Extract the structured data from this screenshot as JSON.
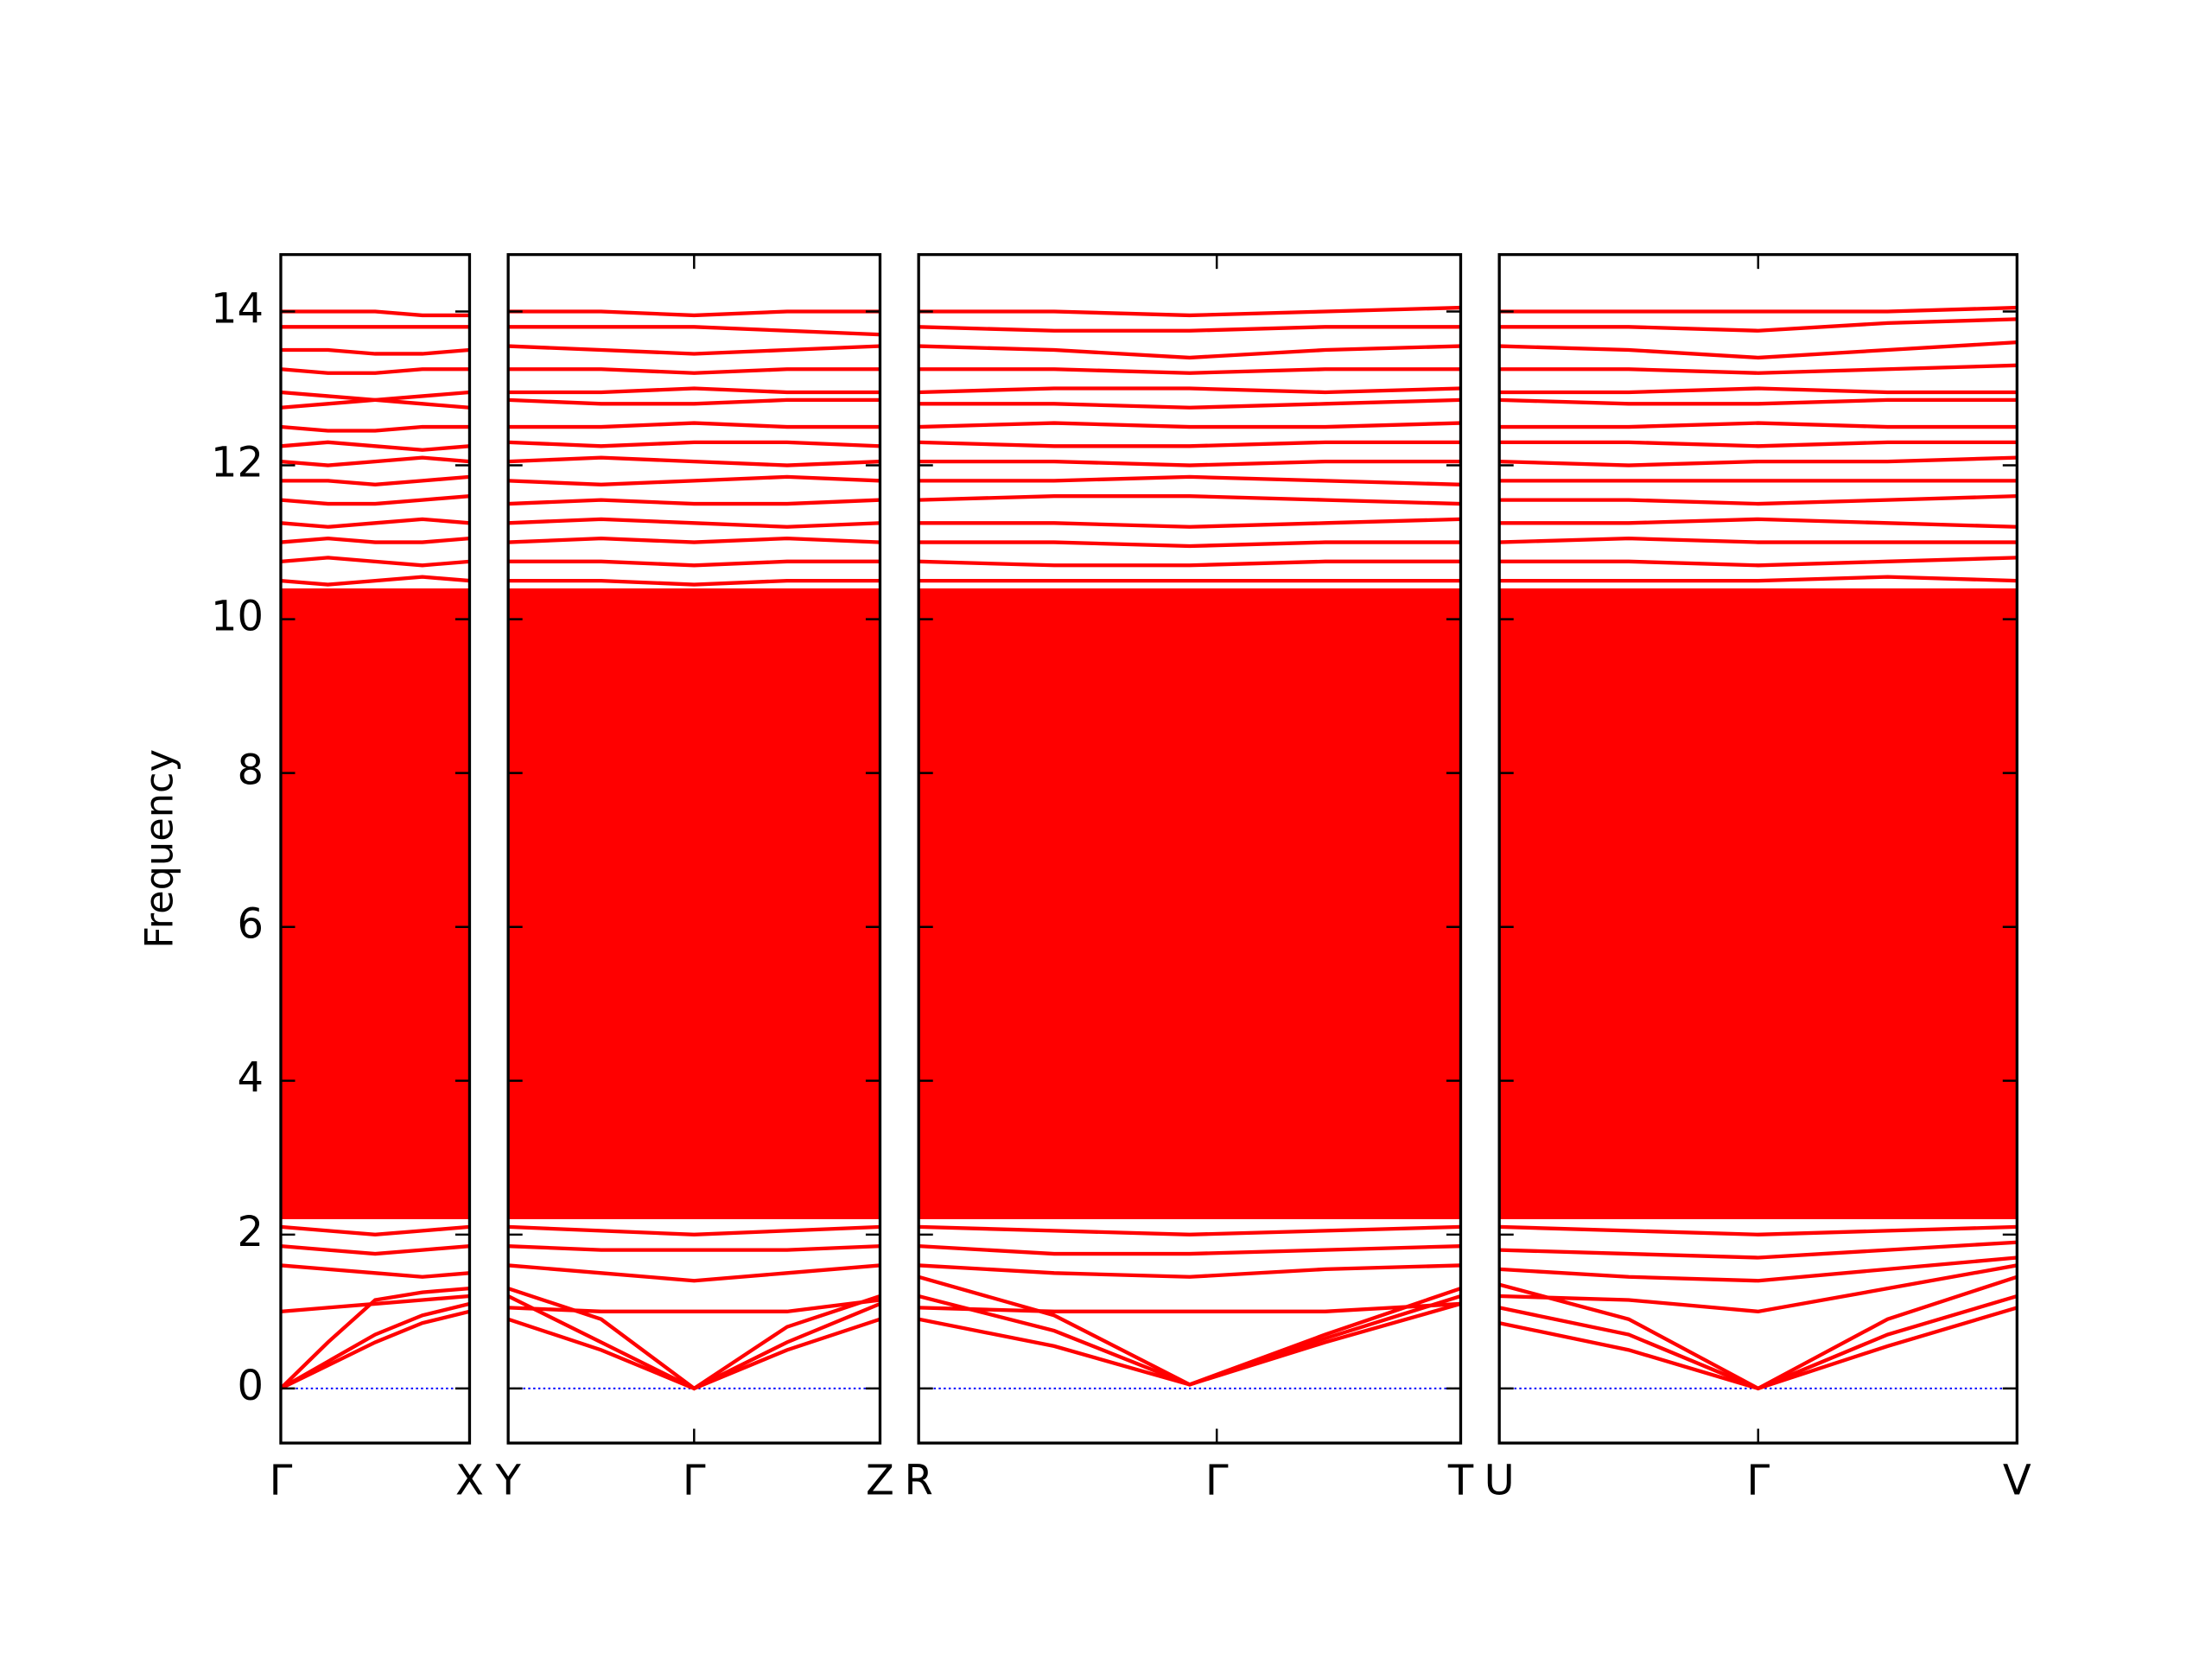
{
  "chart_data": [
    {
      "type": "line",
      "ylabel": "Frequency",
      "x": [
        0,
        0.25,
        0.5,
        0.75,
        1
      ],
      "xlim": [
        0,
        1
      ],
      "ylim": [
        -0.71,
        14.74
      ],
      "xticks": [
        {
          "value": 0,
          "label": "Γ"
        },
        {
          "value": 1,
          "label": "X"
        }
      ],
      "yticks": [
        0,
        2,
        4,
        6,
        8,
        10,
        12,
        14
      ],
      "fill": {
        "low": 2.2,
        "high": 10.4,
        "color": "#ff0000"
      },
      "series": [
        {
          "color": "#0000ff",
          "dash": "dotted",
          "values": [
            0,
            0,
            0,
            0,
            0
          ]
        },
        {
          "color": "#ff0000",
          "values": [
            0,
            0.3,
            0.6,
            0.85,
            1.0
          ]
        },
        {
          "color": "#ff0000",
          "values": [
            0,
            0.35,
            0.7,
            0.95,
            1.1
          ]
        },
        {
          "color": "#ff0000",
          "values": [
            0,
            0.6,
            1.15,
            1.25,
            1.3
          ]
        },
        {
          "color": "#ff0000",
          "values": [
            1.0,
            1.05,
            1.1,
            1.15,
            1.2
          ]
        },
        {
          "color": "#ff0000",
          "values": [
            1.6,
            1.55,
            1.5,
            1.45,
            1.5
          ]
        },
        {
          "color": "#ff0000",
          "values": [
            1.85,
            1.8,
            1.75,
            1.8,
            1.85
          ]
        },
        {
          "color": "#ff0000",
          "values": [
            2.1,
            2.05,
            2.0,
            2.05,
            2.1
          ]
        },
        {
          "color": "#ff0000",
          "values": [
            10.5,
            10.45,
            10.5,
            10.55,
            10.5
          ]
        },
        {
          "color": "#ff0000",
          "values": [
            10.75,
            10.8,
            10.75,
            10.7,
            10.75
          ]
        },
        {
          "color": "#ff0000",
          "values": [
            11.0,
            11.05,
            11.0,
            11.0,
            11.05
          ]
        },
        {
          "color": "#ff0000",
          "values": [
            11.25,
            11.2,
            11.25,
            11.3,
            11.25
          ]
        },
        {
          "color": "#ff0000",
          "values": [
            11.55,
            11.5,
            11.5,
            11.55,
            11.6
          ]
        },
        {
          "color": "#ff0000",
          "values": [
            11.8,
            11.8,
            11.75,
            11.8,
            11.85
          ]
        },
        {
          "color": "#ff0000",
          "values": [
            12.05,
            12.0,
            12.05,
            12.1,
            12.05
          ]
        },
        {
          "color": "#ff0000",
          "values": [
            12.25,
            12.3,
            12.25,
            12.2,
            12.25
          ]
        },
        {
          "color": "#ff0000",
          "values": [
            12.5,
            12.45,
            12.45,
            12.5,
            12.5
          ]
        },
        {
          "color": "#ff0000",
          "values": [
            12.75,
            12.8,
            12.85,
            12.9,
            12.95
          ]
        },
        {
          "color": "#ff0000",
          "values": [
            12.95,
            12.9,
            12.85,
            12.8,
            12.75
          ]
        },
        {
          "color": "#ff0000",
          "values": [
            13.25,
            13.2,
            13.2,
            13.25,
            13.25
          ]
        },
        {
          "color": "#ff0000",
          "values": [
            13.5,
            13.5,
            13.45,
            13.45,
            13.5
          ]
        },
        {
          "color": "#ff0000",
          "values": [
            13.8,
            13.8,
            13.8,
            13.8,
            13.8
          ]
        },
        {
          "color": "#ff0000",
          "values": [
            14.0,
            14.0,
            14.0,
            13.95,
            13.95
          ]
        }
      ]
    },
    {
      "type": "line",
      "x": [
        0,
        0.25,
        0.5,
        0.75,
        1
      ],
      "xlim": [
        0,
        1
      ],
      "ylim": [
        -0.71,
        14.74
      ],
      "xticks": [
        {
          "value": 0,
          "label": "Y"
        },
        {
          "value": 0.5,
          "label": "Γ"
        },
        {
          "value": 1,
          "label": "Z"
        }
      ],
      "yticks": [
        0,
        2,
        4,
        6,
        8,
        10,
        12,
        14
      ],
      "fill": {
        "low": 2.2,
        "high": 10.4,
        "color": "#ff0000"
      },
      "series": [
        {
          "color": "#0000ff",
          "dash": "dotted",
          "values": [
            0,
            0,
            0,
            0,
            0
          ]
        },
        {
          "color": "#ff0000",
          "values": [
            1.2,
            0.6,
            0,
            0.6,
            1.1
          ]
        },
        {
          "color": "#ff0000",
          "values": [
            0.9,
            0.5,
            0,
            0.5,
            0.9
          ]
        },
        {
          "color": "#ff0000",
          "values": [
            1.3,
            0.9,
            0,
            0.8,
            1.2
          ]
        },
        {
          "color": "#ff0000",
          "values": [
            1.05,
            1.0,
            1.0,
            1.0,
            1.15
          ]
        },
        {
          "color": "#ff0000",
          "values": [
            1.6,
            1.5,
            1.4,
            1.5,
            1.6
          ]
        },
        {
          "color": "#ff0000",
          "values": [
            1.85,
            1.8,
            1.8,
            1.8,
            1.85
          ]
        },
        {
          "color": "#ff0000",
          "values": [
            2.1,
            2.05,
            2.0,
            2.05,
            2.1
          ]
        },
        {
          "color": "#ff0000",
          "values": [
            10.5,
            10.5,
            10.45,
            10.5,
            10.5
          ]
        },
        {
          "color": "#ff0000",
          "values": [
            10.75,
            10.75,
            10.7,
            10.75,
            10.75
          ]
        },
        {
          "color": "#ff0000",
          "values": [
            11.0,
            11.05,
            11.0,
            11.05,
            11.0
          ]
        },
        {
          "color": "#ff0000",
          "values": [
            11.25,
            11.3,
            11.25,
            11.2,
            11.25
          ]
        },
        {
          "color": "#ff0000",
          "values": [
            11.5,
            11.55,
            11.5,
            11.5,
            11.55
          ]
        },
        {
          "color": "#ff0000",
          "values": [
            11.8,
            11.75,
            11.8,
            11.85,
            11.8
          ]
        },
        {
          "color": "#ff0000",
          "values": [
            12.05,
            12.1,
            12.05,
            12.0,
            12.05
          ]
        },
        {
          "color": "#ff0000",
          "values": [
            12.3,
            12.25,
            12.3,
            12.3,
            12.25
          ]
        },
        {
          "color": "#ff0000",
          "values": [
            12.5,
            12.5,
            12.55,
            12.5,
            12.5
          ]
        },
        {
          "color": "#ff0000",
          "values": [
            12.85,
            12.8,
            12.8,
            12.85,
            12.85
          ]
        },
        {
          "color": "#ff0000",
          "values": [
            12.95,
            12.95,
            13.0,
            12.95,
            12.95
          ]
        },
        {
          "color": "#ff0000",
          "values": [
            13.25,
            13.25,
            13.2,
            13.25,
            13.25
          ]
        },
        {
          "color": "#ff0000",
          "values": [
            13.55,
            13.5,
            13.45,
            13.5,
            13.55
          ]
        },
        {
          "color": "#ff0000",
          "values": [
            13.8,
            13.8,
            13.8,
            13.75,
            13.7
          ]
        },
        {
          "color": "#ff0000",
          "values": [
            14.0,
            14.0,
            13.95,
            14.0,
            14.0
          ]
        }
      ]
    },
    {
      "type": "line",
      "x": [
        0,
        0.25,
        0.5,
        0.75,
        1
      ],
      "xlim": [
        0,
        1
      ],
      "ylim": [
        -0.71,
        14.74
      ],
      "xticks": [
        {
          "value": 0,
          "label": "R"
        },
        {
          "value": 0.55,
          "label": "Γ"
        },
        {
          "value": 1,
          "label": "T"
        }
      ],
      "yticks": [
        0,
        2,
        4,
        6,
        8,
        10,
        12,
        14
      ],
      "fill": {
        "low": 2.2,
        "high": 10.4,
        "color": "#ff0000"
      },
      "series": [
        {
          "color": "#0000ff",
          "dash": "dotted",
          "values": [
            0,
            0,
            0,
            0,
            0
          ]
        },
        {
          "color": "#ff0000",
          "values": [
            0.9,
            0.55,
            0.05,
            0.6,
            1.1
          ]
        },
        {
          "color": "#ff0000",
          "values": [
            1.2,
            0.75,
            0.05,
            0.65,
            1.2
          ]
        },
        {
          "color": "#ff0000",
          "values": [
            1.45,
            0.95,
            0.05,
            0.7,
            1.3
          ]
        },
        {
          "color": "#ff0000",
          "values": [
            1.05,
            1.0,
            1.0,
            1.0,
            1.1
          ]
        },
        {
          "color": "#ff0000",
          "values": [
            1.6,
            1.5,
            1.45,
            1.55,
            1.6
          ]
        },
        {
          "color": "#ff0000",
          "values": [
            1.85,
            1.75,
            1.75,
            1.8,
            1.85
          ]
        },
        {
          "color": "#ff0000",
          "values": [
            2.1,
            2.05,
            2.0,
            2.05,
            2.1
          ]
        },
        {
          "color": "#ff0000",
          "values": [
            10.5,
            10.5,
            10.5,
            10.5,
            10.5
          ]
        },
        {
          "color": "#ff0000",
          "values": [
            10.75,
            10.7,
            10.7,
            10.75,
            10.75
          ]
        },
        {
          "color": "#ff0000",
          "values": [
            11.0,
            11.0,
            10.95,
            11.0,
            11.0
          ]
        },
        {
          "color": "#ff0000",
          "values": [
            11.25,
            11.25,
            11.2,
            11.25,
            11.3
          ]
        },
        {
          "color": "#ff0000",
          "values": [
            11.55,
            11.6,
            11.6,
            11.55,
            11.5
          ]
        },
        {
          "color": "#ff0000",
          "values": [
            11.8,
            11.8,
            11.85,
            11.8,
            11.75
          ]
        },
        {
          "color": "#ff0000",
          "values": [
            12.05,
            12.05,
            12.0,
            12.05,
            12.05
          ]
        },
        {
          "color": "#ff0000",
          "values": [
            12.3,
            12.25,
            12.25,
            12.3,
            12.3
          ]
        },
        {
          "color": "#ff0000",
          "values": [
            12.5,
            12.55,
            12.5,
            12.5,
            12.55
          ]
        },
        {
          "color": "#ff0000",
          "values": [
            12.8,
            12.8,
            12.75,
            12.8,
            12.85
          ]
        },
        {
          "color": "#ff0000",
          "values": [
            12.95,
            13.0,
            13.0,
            12.95,
            13.0
          ]
        },
        {
          "color": "#ff0000",
          "values": [
            13.25,
            13.25,
            13.2,
            13.25,
            13.25
          ]
        },
        {
          "color": "#ff0000",
          "values": [
            13.55,
            13.5,
            13.4,
            13.5,
            13.55
          ]
        },
        {
          "color": "#ff0000",
          "values": [
            13.8,
            13.75,
            13.75,
            13.8,
            13.8
          ]
        },
        {
          "color": "#ff0000",
          "values": [
            14.0,
            14.0,
            13.95,
            14.0,
            14.05
          ]
        }
      ]
    },
    {
      "type": "line",
      "x": [
        0,
        0.25,
        0.5,
        0.75,
        1
      ],
      "xlim": [
        0,
        1
      ],
      "ylim": [
        -0.71,
        14.74
      ],
      "xticks": [
        {
          "value": 0,
          "label": "U"
        },
        {
          "value": 0.5,
          "label": "Γ"
        },
        {
          "value": 1,
          "label": "V"
        }
      ],
      "yticks": [
        0,
        2,
        4,
        6,
        8,
        10,
        12,
        14
      ],
      "fill": {
        "low": 2.2,
        "high": 10.4,
        "color": "#ff0000"
      },
      "series": [
        {
          "color": "#0000ff",
          "dash": "dotted",
          "values": [
            0,
            0,
            0,
            0,
            0
          ]
        },
        {
          "color": "#ff0000",
          "values": [
            0.85,
            0.5,
            0,
            0.55,
            1.05
          ]
        },
        {
          "color": "#ff0000",
          "values": [
            1.05,
            0.7,
            0,
            0.7,
            1.2
          ]
        },
        {
          "color": "#ff0000",
          "values": [
            1.35,
            0.9,
            0,
            0.9,
            1.45
          ]
        },
        {
          "color": "#ff0000",
          "values": [
            1.2,
            1.15,
            1.0,
            1.3,
            1.6
          ]
        },
        {
          "color": "#ff0000",
          "values": [
            1.55,
            1.45,
            1.4,
            1.55,
            1.7
          ]
        },
        {
          "color": "#ff0000",
          "values": [
            1.8,
            1.75,
            1.7,
            1.8,
            1.9
          ]
        },
        {
          "color": "#ff0000",
          "values": [
            2.1,
            2.05,
            2.0,
            2.05,
            2.1
          ]
        },
        {
          "color": "#ff0000",
          "values": [
            10.5,
            10.5,
            10.5,
            10.55,
            10.5
          ]
        },
        {
          "color": "#ff0000",
          "values": [
            10.75,
            10.75,
            10.7,
            10.75,
            10.8
          ]
        },
        {
          "color": "#ff0000",
          "values": [
            11.0,
            11.05,
            11.0,
            11.0,
            11.0
          ]
        },
        {
          "color": "#ff0000",
          "values": [
            11.25,
            11.25,
            11.3,
            11.25,
            11.2
          ]
        },
        {
          "color": "#ff0000",
          "values": [
            11.55,
            11.55,
            11.5,
            11.55,
            11.6
          ]
        },
        {
          "color": "#ff0000",
          "values": [
            11.8,
            11.8,
            11.8,
            11.8,
            11.8
          ]
        },
        {
          "color": "#ff0000",
          "values": [
            12.05,
            12.0,
            12.05,
            12.05,
            12.1
          ]
        },
        {
          "color": "#ff0000",
          "values": [
            12.3,
            12.3,
            12.25,
            12.3,
            12.3
          ]
        },
        {
          "color": "#ff0000",
          "values": [
            12.5,
            12.5,
            12.55,
            12.5,
            12.5
          ]
        },
        {
          "color": "#ff0000",
          "values": [
            12.85,
            12.8,
            12.8,
            12.85,
            12.85
          ]
        },
        {
          "color": "#ff0000",
          "values": [
            12.95,
            12.95,
            13.0,
            12.95,
            12.95
          ]
        },
        {
          "color": "#ff0000",
          "values": [
            13.25,
            13.25,
            13.2,
            13.25,
            13.3
          ]
        },
        {
          "color": "#ff0000",
          "values": [
            13.55,
            13.5,
            13.4,
            13.5,
            13.6
          ]
        },
        {
          "color": "#ff0000",
          "values": [
            13.8,
            13.8,
            13.75,
            13.85,
            13.9
          ]
        },
        {
          "color": "#ff0000",
          "values": [
            14.0,
            14.0,
            14.0,
            14.0,
            14.05
          ]
        }
      ]
    }
  ]
}
